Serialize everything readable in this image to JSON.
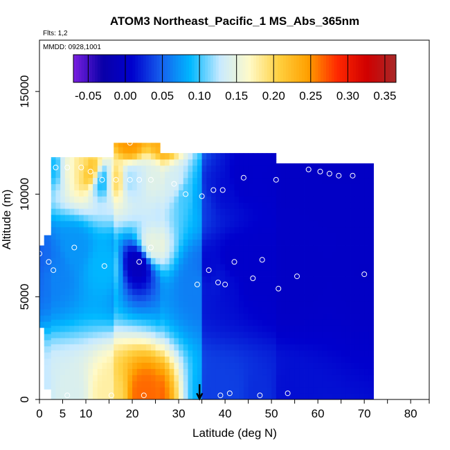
{
  "chart_data": {
    "type": "heatmap",
    "title": "ATOM3 Northeast_Pacific_1 MS_Abs_365nm",
    "flights_label": "Flts: 1,2",
    "dates_label": "MMDD: 0928,1001",
    "xlabel": "Latitude (deg N)",
    "ylabel": "Altitude (m)",
    "xlim": [
      0,
      84
    ],
    "ylim": [
      0,
      17500
    ],
    "x_ticks": [
      0,
      5,
      10,
      20,
      30,
      40,
      50,
      60,
      70,
      80
    ],
    "y_ticks": [
      0,
      5000,
      10000,
      15000
    ],
    "colorbar": {
      "range": [
        -0.07,
        0.365
      ],
      "ticks": [
        -0.05,
        0.0,
        0.05,
        0.1,
        0.15,
        0.2,
        0.25,
        0.3,
        0.35
      ],
      "tick_labels": [
        "-0.05",
        "0.00",
        "0.05",
        "0.10",
        "0.15",
        "0.20",
        "0.25",
        "0.30",
        "0.35"
      ],
      "colors": [
        "#7a1fe0",
        "#0a00a8",
        "#0000cd",
        "#1560ee",
        "#00b8ff",
        "#c8eaff",
        "#fffac8",
        "#ffd040",
        "#ffa000",
        "#ff2800",
        "#d00000",
        "#a82828"
      ]
    },
    "arrow_marker_lat": 34.5,
    "columns": [
      {
        "lat": [
          0,
          1
        ],
        "alt": [
          3500,
          7500
        ],
        "base": 0.05
      },
      {
        "lat": [
          1,
          2.5
        ],
        "alt": [
          500,
          8000
        ],
        "base": 0.06
      },
      {
        "lat": [
          2.5,
          16
        ],
        "alt": [
          0,
          11800
        ],
        "base": 0.08
      },
      {
        "lat": [
          16,
          26
        ],
        "alt": [
          0,
          12500
        ],
        "base": 0.16
      },
      {
        "lat": [
          26,
          35
        ],
        "alt": [
          0,
          12000
        ],
        "base": 0.19
      },
      {
        "lat": [
          35,
          51
        ],
        "alt": [
          0,
          12000
        ],
        "base": 0.02
      },
      {
        "lat": [
          51,
          72
        ],
        "alt": [
          0,
          11500
        ],
        "base": 0.0
      }
    ],
    "samples": [
      {
        "lat": 1.0,
        "alt": 300,
        "value": 0.15
      },
      {
        "lat": 6.0,
        "alt": 200,
        "value": 0.16
      },
      {
        "lat": 15.5,
        "alt": 200,
        "value": 0.21
      },
      {
        "lat": 22.5,
        "alt": 200,
        "value": 0.3
      },
      {
        "lat": 39.0,
        "alt": 200,
        "value": 0.04
      },
      {
        "lat": 41.0,
        "alt": 300,
        "value": 0.04
      },
      {
        "lat": 47.5,
        "alt": 200,
        "value": 0.03
      },
      {
        "lat": 53.5,
        "alt": 300,
        "value": 0.02
      },
      {
        "lat": 3.0,
        "alt": 6300,
        "value": 0.06
      },
      {
        "lat": 2.0,
        "alt": 6700,
        "value": 0.05
      },
      {
        "lat": 0.0,
        "alt": 7100,
        "value": 0.05
      },
      {
        "lat": 7.5,
        "alt": 7400,
        "value": 0.07
      },
      {
        "lat": 14.0,
        "alt": 6500,
        "value": 0.09
      },
      {
        "lat": 21.5,
        "alt": 6700,
        "value": -0.07
      },
      {
        "lat": 24.0,
        "alt": 7400,
        "value": 0.15
      },
      {
        "lat": 34.0,
        "alt": 5600,
        "value": 0.02
      },
      {
        "lat": 36.5,
        "alt": 6300,
        "value": 0.01
      },
      {
        "lat": 38.5,
        "alt": 5700,
        "value": 0.02
      },
      {
        "lat": 40.0,
        "alt": 5600,
        "value": 0.01
      },
      {
        "lat": 42.0,
        "alt": 6700,
        "value": 0.0
      },
      {
        "lat": 48.0,
        "alt": 6800,
        "value": 0.0
      },
      {
        "lat": 46.0,
        "alt": 5900,
        "value": 0.0
      },
      {
        "lat": 51.5,
        "alt": 5400,
        "value": 0.0
      },
      {
        "lat": 55.5,
        "alt": 6000,
        "value": 0.0
      },
      {
        "lat": 70.0,
        "alt": 6100,
        "value": 0.0
      },
      {
        "lat": 3.5,
        "alt": 11300,
        "value": 0.09
      },
      {
        "lat": 6.0,
        "alt": 11300,
        "value": 0.19
      },
      {
        "lat": 9.0,
        "alt": 11300,
        "value": 0.22
      },
      {
        "lat": 11.0,
        "alt": 11100,
        "value": 0.28
      },
      {
        "lat": 13.5,
        "alt": 10700,
        "value": 0.08
      },
      {
        "lat": 16.5,
        "alt": 10700,
        "value": 0.22
      },
      {
        "lat": 19.5,
        "alt": 10700,
        "value": 0.1
      },
      {
        "lat": 21.5,
        "alt": 10700,
        "value": 0.12
      },
      {
        "lat": 24.0,
        "alt": 10700,
        "value": 0.14
      },
      {
        "lat": 29.0,
        "alt": 10500,
        "value": 0.12
      },
      {
        "lat": 31.5,
        "alt": 10000,
        "value": 0.07
      },
      {
        "lat": 35.0,
        "alt": 9900,
        "value": 0.04
      },
      {
        "lat": 37.5,
        "alt": 10200,
        "value": 0.02
      },
      {
        "lat": 39.5,
        "alt": 10200,
        "value": 0.01
      },
      {
        "lat": 44.0,
        "alt": 10800,
        "value": 0.0
      },
      {
        "lat": 51.0,
        "alt": 10700,
        "value": 0.0
      },
      {
        "lat": 58.0,
        "alt": 11200,
        "value": 0.0
      },
      {
        "lat": 60.5,
        "alt": 11100,
        "value": 0.0
      },
      {
        "lat": 62.5,
        "alt": 11000,
        "value": 0.0
      },
      {
        "lat": 64.5,
        "alt": 10900,
        "value": 0.0
      },
      {
        "lat": 67.5,
        "alt": 10900,
        "value": 0.0
      },
      {
        "lat": 19.5,
        "alt": 12500,
        "value": 0.28
      },
      {
        "lat": 26.5,
        "alt": 12600,
        "value": 0.26
      }
    ]
  }
}
